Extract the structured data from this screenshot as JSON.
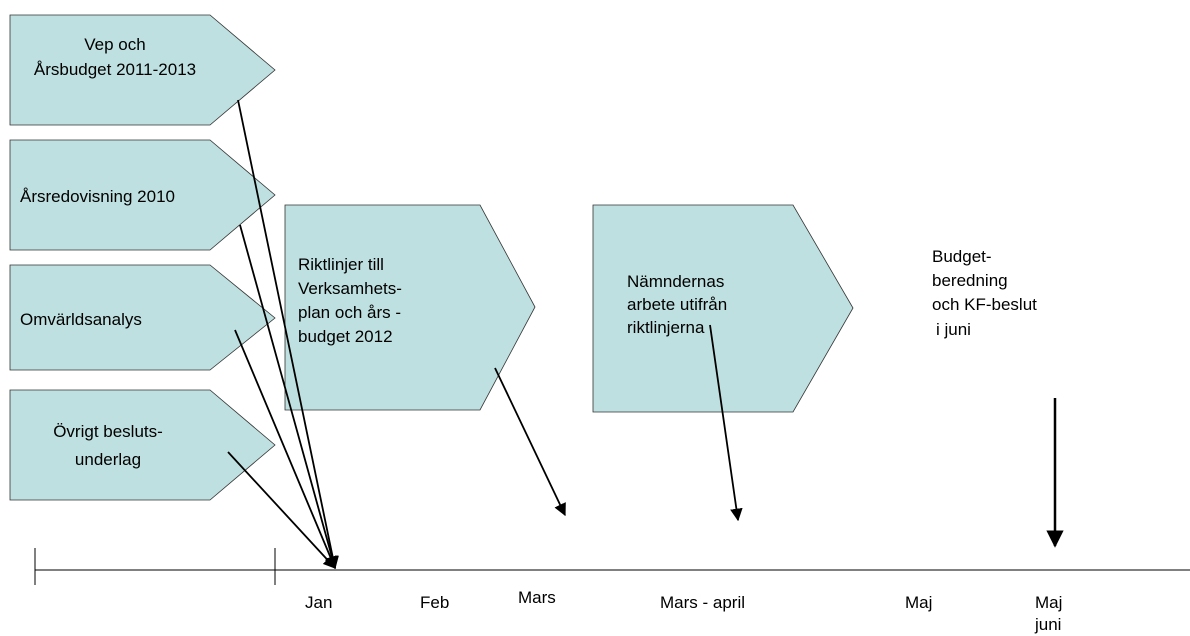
{
  "nodes": [
    {
      "lines": [
        "Vep och",
        "Årsbudget 2011-2013"
      ]
    },
    {
      "lines": [
        "Årsredovisning 2010"
      ]
    },
    {
      "lines": [
        "Omvärldsanalys"
      ]
    },
    {
      "lines": [
        "Övrigt besluts-",
        "underlag"
      ]
    },
    {
      "lines": [
        "Riktlinjer till",
        "Verksamhets-",
        "plan och års -",
        "budget 2012"
      ]
    },
    {
      "lines": [
        "Nämndernas",
        "arbete utifrån",
        "riktlinjerna"
      ]
    }
  ],
  "note": {
    "lines": [
      "Budget-",
      "beredning",
      "och KF-beslut",
      "i juni"
    ]
  },
  "timeline": {
    "labels": [
      "Jan",
      "Feb",
      "Mars",
      "Mars - april",
      "Maj",
      "Maj",
      "juni"
    ]
  }
}
